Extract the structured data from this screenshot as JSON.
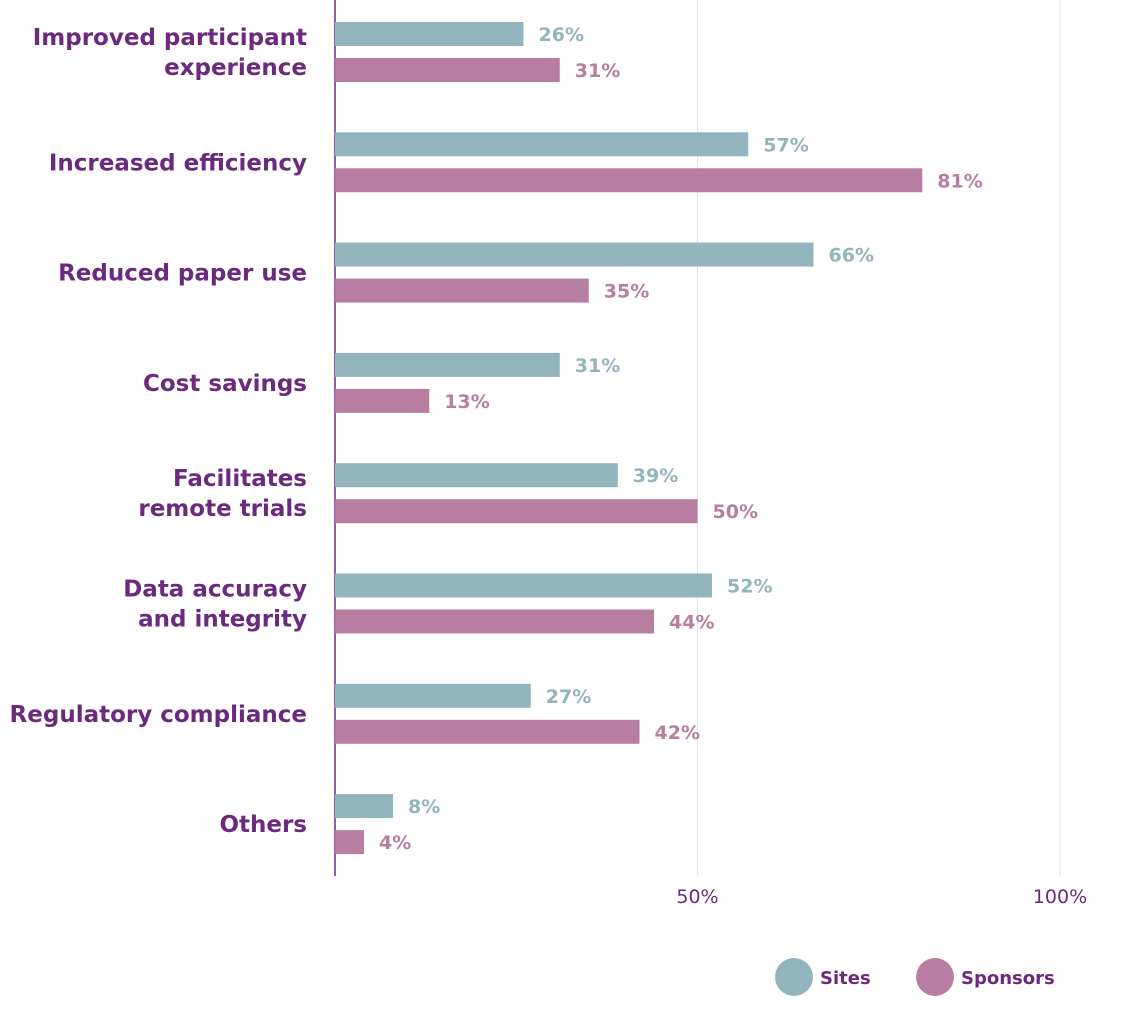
{
  "chart_data": {
    "type": "bar",
    "orientation": "horizontal",
    "categories": [
      [
        "Improved participant",
        "experience"
      ],
      [
        "Increased efficiency"
      ],
      [
        "Reduced paper use"
      ],
      [
        "Cost savings"
      ],
      [
        "Facilitates",
        "remote trials"
      ],
      [
        "Data accuracy",
        "and integrity"
      ],
      [
        "Regulatory compliance"
      ],
      [
        "Others"
      ]
    ],
    "series": [
      {
        "name": "Sites",
        "color": "#92b4bc",
        "values": [
          26,
          57,
          66,
          31,
          39,
          52,
          27,
          8
        ],
        "labels": [
          "26%",
          "57%",
          "66%",
          "31%",
          "39%",
          "52%",
          "27%",
          "8%"
        ]
      },
      {
        "name": "Sponsors",
        "color": "#b87ea2",
        "values": [
          31,
          81,
          35,
          13,
          50,
          44,
          42,
          4
        ],
        "labels": [
          "31%",
          "81%",
          "35%",
          "13%",
          "50%",
          "44%",
          "42%",
          "4%"
        ]
      }
    ],
    "xlim": [
      0,
      100
    ],
    "ticks": [
      {
        "value": 50,
        "label": "50%"
      },
      {
        "value": 100,
        "label": "100%"
      }
    ],
    "grid": true,
    "legend_position": "bottom-right",
    "label_color": "#6b2a7e",
    "axis_color": "#6b2a7e",
    "grid_color": "#e2e2e2"
  },
  "legend": {
    "items": [
      {
        "name": "Sites",
        "color": "#92b4bc"
      },
      {
        "name": "Sponsors",
        "color": "#b87ea2"
      }
    ]
  }
}
